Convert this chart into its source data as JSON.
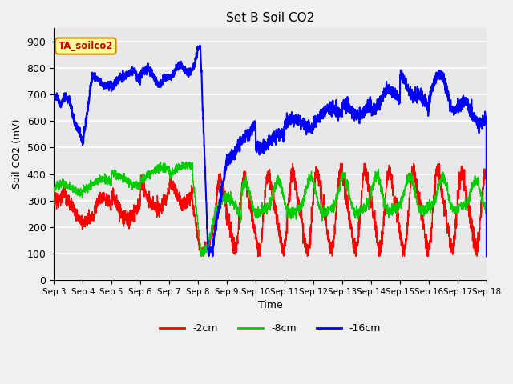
{
  "title": "Set B Soil CO2",
  "ylabel": "Soil CO2 (mV)",
  "xlabel": "Time",
  "annotation": "TA_soilco2",
  "xtick_labels": [
    "Sep 3",
    "Sep 4",
    "Sep 5",
    "Sep 6",
    "Sep 7",
    "Sep 8",
    "Sep 9",
    "Sep 10",
    "Sep 11",
    "Sep 12",
    "Sep 13",
    "Sep 14",
    "Sep 15",
    "Sep 16",
    "Sep 17",
    "Sep 18"
  ],
  "ylim": [
    0,
    950
  ],
  "xlim": [
    0,
    15
  ],
  "legend_labels": [
    "-2cm",
    "-8cm",
    "-16cm"
  ],
  "legend_colors": [
    "#ff0000",
    "#00cc00",
    "#0000ff"
  ],
  "line_colors": [
    "#ff0000",
    "#00cc00",
    "#0000ff"
  ],
  "bg_color": "#e8e8e8",
  "grid_color": "#ffffff",
  "annotation_bg": "#ffff99",
  "annotation_text_color": "#cc0000",
  "annotation_edge_color": "#cc8800",
  "fig_bg": "#f0f0f0"
}
